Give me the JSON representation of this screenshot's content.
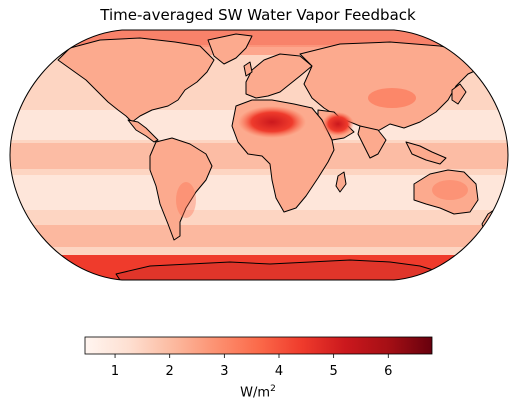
{
  "figure": {
    "title": "Time-averaged SW Water Vapor Feedback",
    "projection": "Robinson"
  },
  "colorbar": {
    "colormap": "Reds",
    "range": [
      0.45,
      6.8
    ],
    "ticks": [
      "1",
      "2",
      "3",
      "4",
      "5",
      "6"
    ],
    "unit_base": "W/m",
    "unit_exp": "2",
    "stops": [
      "#fff5f0",
      "#fee0d2",
      "#fcbba1",
      "#fc9272",
      "#fb6a4a",
      "#ef3b2c",
      "#cb181d",
      "#a50f15",
      "#67000d"
    ]
  },
  "map": {
    "ocean_color": "#fdd5c2",
    "equatorial_band_color": "#fcbca4",
    "arctic_color": "#f8826a",
    "antarctic_color": "#ef3b2c",
    "land_color": "#fcaa8e",
    "sahara_arabia_color": "#e0352a",
    "coastline_color": "#000000"
  }
}
